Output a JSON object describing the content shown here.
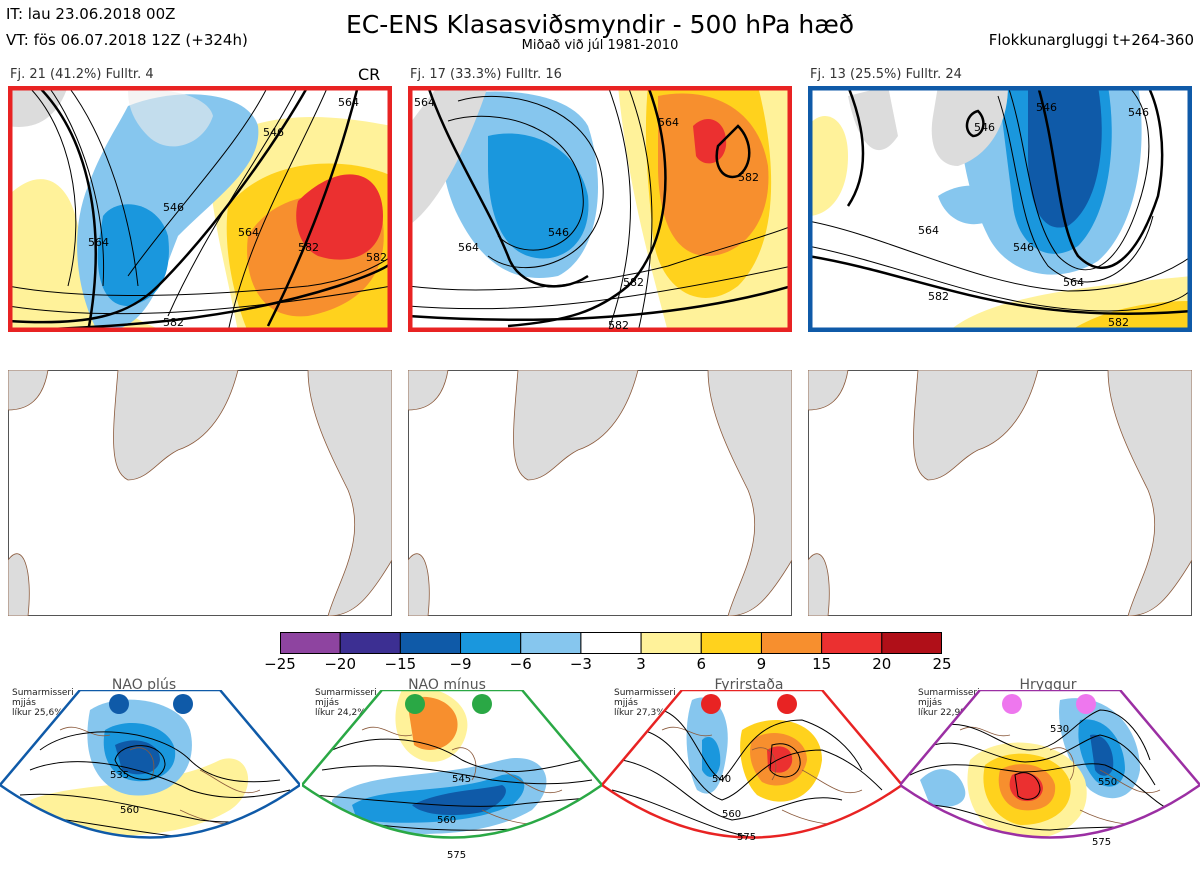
{
  "header": {
    "it_line": "IT: lau 23.06.2018 00Z",
    "vt_line": "VT: fös 06.07.2018 12Z  (+324h)",
    "title": "EC-ENS Klasasviðsmyndir - 500 hPa hæð",
    "subtitle": "Miðað við júl 1981-2010",
    "window": "Flokkunargluggi t+264-360"
  },
  "clusters": [
    {
      "label": "Fj. 21 (41.2%)   Fulltr. 4",
      "tag": "CR",
      "border_color": "#e82323",
      "contours": [
        "564",
        "546",
        "564",
        "546",
        "564",
        "546",
        "582",
        "564",
        "582",
        "582"
      ]
    },
    {
      "label": "Fj. 17 (33.3%)   Fulltr. 16",
      "tag": "",
      "border_color": "#e82323",
      "contours": [
        "564",
        "546",
        "546",
        "564",
        "564",
        "582",
        "582",
        "582"
      ]
    },
    {
      "label": "Fj. 13 (25.5%)   Fulltr. 24",
      "tag": "",
      "border_color": "#0f5aa8",
      "contours": [
        "546",
        "546",
        "546",
        "564",
        "546",
        "564",
        "582",
        "582"
      ]
    }
  ],
  "colorbar": {
    "ticks": [
      "−25",
      "−20",
      "−15",
      "−9",
      "−6",
      "−3",
      "3",
      "6",
      "9",
      "15",
      "20",
      "25"
    ],
    "colors": [
      "#8e44a0",
      "#3c2f92",
      "#0f5aa8",
      "#1a97dd",
      "#86c6ee",
      "#ffffff",
      "#fff29a",
      "#ffd21d",
      "#f78f2e",
      "#eb3030",
      "#b00f18"
    ]
  },
  "regimes": [
    {
      "name": "NAO plús",
      "note": "Sumarmisseri\nmjjás\nlíkur 25,6%",
      "color": "#0f5aa8",
      "contours": [
        "535",
        "560"
      ]
    },
    {
      "name": "NAO mínus",
      "note": "Sumarmisseri\nmjjás\nlíkur 24,2%",
      "color": "#2aa845",
      "contours": [
        "545",
        "560",
        "575"
      ]
    },
    {
      "name": "Fyrirstaða",
      "note": "Sumarmisseri\nmjjás\nlíkur 27,3%",
      "color": "#e82323",
      "contours": [
        "540",
        "560",
        "575"
      ]
    },
    {
      "name": "Hryggur",
      "note": "Sumarmisseri\nmjjás\nlíkur 22,9%",
      "color": "#ee77ee",
      "contours": [
        "530",
        "550",
        "575"
      ]
    }
  ]
}
